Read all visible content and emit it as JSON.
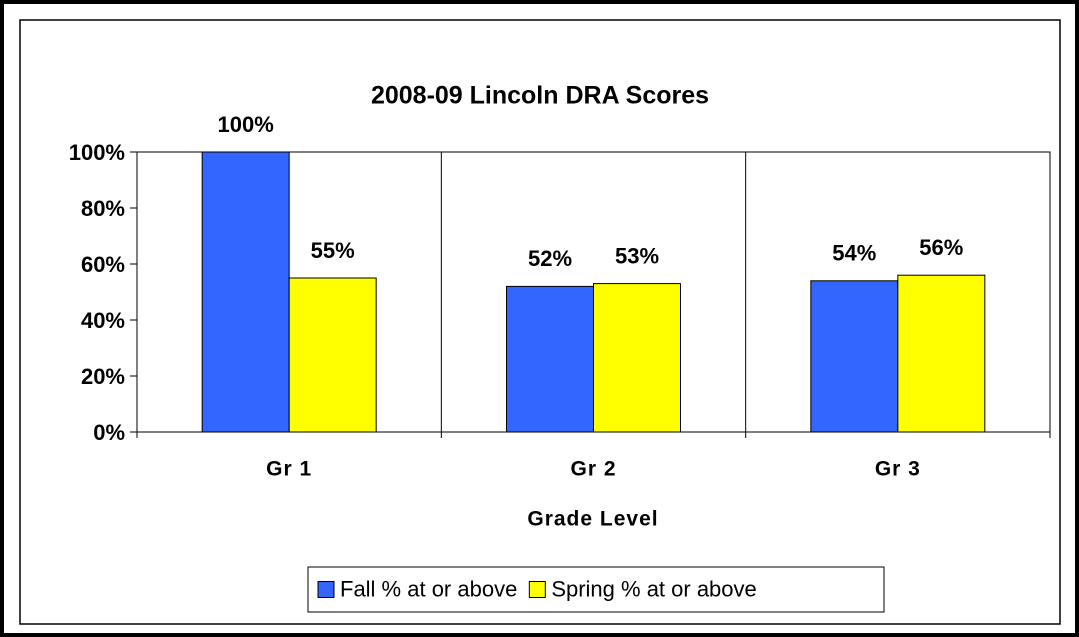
{
  "chart_data": {
    "type": "bar",
    "title": "2008-09 Lincoln DRA Scores",
    "x_label": "Grade Level",
    "categories": [
      "Gr 1",
      "Gr 2",
      "Gr 3"
    ],
    "series": [
      {
        "name": "Fall % at or above",
        "color": "#3366ff",
        "values": [
          100,
          52,
          54
        ],
        "value_labels": [
          "100%",
          "52%",
          "54%"
        ]
      },
      {
        "name": "Spring % at or above",
        "color": "#ffff00",
        "values": [
          55,
          53,
          56
        ],
        "value_labels": [
          "55%",
          "53%",
          "56%"
        ]
      }
    ],
    "ylim": [
      0,
      100
    ],
    "yticks": [
      {
        "value": 0,
        "label": "0%"
      },
      {
        "value": 20,
        "label": "20%"
      },
      {
        "value": 40,
        "label": "40%"
      },
      {
        "value": 60,
        "label": "60%"
      },
      {
        "value": 80,
        "label": "80%"
      },
      {
        "value": 100,
        "label": "100%"
      }
    ],
    "legend": "bottom"
  }
}
